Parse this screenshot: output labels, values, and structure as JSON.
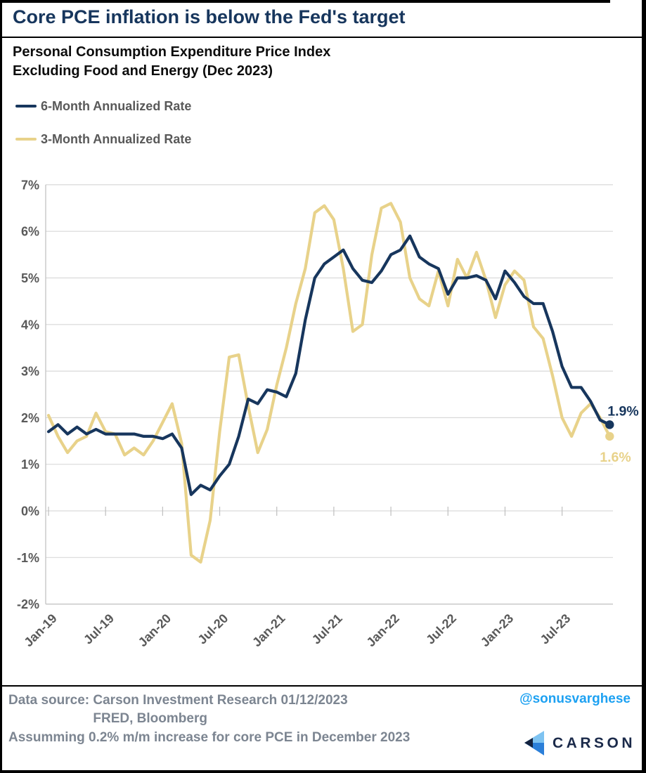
{
  "title": "Core PCE inflation is below the Fed's target",
  "subtitle": {
    "line1": "Personal Consumption Expenditure Price Index",
    "line2": "Excluding Food and Energy (Dec 2023)"
  },
  "legend": [
    {
      "label": "6-Month Annualized Rate",
      "color": "#17365D"
    },
    {
      "label": "3-Month Annualized Rate",
      "color": "#E8D28A"
    }
  ],
  "chart_data": {
    "type": "line",
    "title": "Core PCE inflation is below the Fed's target",
    "xlabel": "",
    "ylabel": "",
    "x_start": "Jan-2019",
    "frequency": "monthly",
    "x_tick_labels": [
      "Jan-19",
      "Jul-19",
      "Jan-20",
      "Jul-20",
      "Jan-21",
      "Jul-21",
      "Jan-22",
      "Jul-22",
      "Jan-23",
      "Jul-23"
    ],
    "y_tick_labels": [
      "7%",
      "6%",
      "5%",
      "4%",
      "3%",
      "2%",
      "1%",
      "0%",
      "-1%",
      "-2%"
    ],
    "ylim": [
      -2,
      7
    ],
    "grid": "horizontal",
    "legend_position": "top-left",
    "series": [
      {
        "name": "6-Month Annualized Rate",
        "color": "#17365D",
        "end_label": "1.9%",
        "values": [
          1.7,
          1.85,
          1.65,
          1.8,
          1.65,
          1.75,
          1.65,
          1.65,
          1.65,
          1.65,
          1.6,
          1.6,
          1.55,
          1.65,
          1.35,
          0.35,
          0.55,
          0.45,
          0.75,
          1.0,
          1.6,
          2.4,
          2.3,
          2.6,
          2.55,
          2.45,
          2.95,
          4.1,
          5.0,
          5.3,
          5.45,
          5.6,
          5.2,
          4.95,
          4.9,
          5.15,
          5.5,
          5.6,
          5.9,
          5.45,
          5.3,
          5.2,
          4.65,
          5.0,
          5.0,
          5.05,
          4.95,
          4.55,
          5.15,
          4.9,
          4.6,
          4.45,
          4.45,
          3.85,
          3.1,
          2.65,
          2.65,
          2.35,
          1.95,
          1.85
        ]
      },
      {
        "name": "3-Month Annualized Rate",
        "color": "#E8D28A",
        "end_label": "1.6%",
        "values": [
          2.05,
          1.6,
          1.25,
          1.5,
          1.6,
          2.1,
          1.7,
          1.65,
          1.2,
          1.35,
          1.2,
          1.5,
          1.9,
          2.3,
          1.45,
          -0.95,
          -1.1,
          -0.2,
          1.7,
          3.3,
          3.35,
          2.25,
          1.25,
          1.75,
          2.7,
          3.5,
          4.45,
          5.2,
          6.4,
          6.55,
          6.25,
          5.2,
          3.85,
          4.0,
          5.5,
          6.5,
          6.6,
          6.2,
          5.0,
          4.55,
          4.4,
          5.15,
          4.4,
          5.4,
          5.0,
          5.55,
          4.95,
          4.15,
          4.85,
          5.15,
          4.95,
          3.95,
          3.7,
          2.9,
          2.0,
          1.6,
          2.1,
          2.3,
          2.0,
          1.6
        ]
      }
    ]
  },
  "footer": {
    "data_source_label": "Data source:",
    "source_line1": "Carson Investment Research  01/12/2023",
    "source_line2": "FRED, Bloomberg",
    "handle": "@sonusvarghese",
    "note": "Assumming 0.2% m/m increase for core PCE in December 2023",
    "logo_text": "CARSON"
  },
  "colors": {
    "series_6m": "#17365D",
    "series_3m": "#E8D28A",
    "title": "#17365D",
    "axis_text": "#595959",
    "gridline": "#D9D9D9",
    "axis_line": "#BFBFBF",
    "footer_text": "#7C8591",
    "handle_blue": "#1DA1F2",
    "logo_light_blue": "#7EC3F1",
    "logo_mid_blue": "#2B7FD9",
    "logo_dark_navy": "#14223E"
  }
}
